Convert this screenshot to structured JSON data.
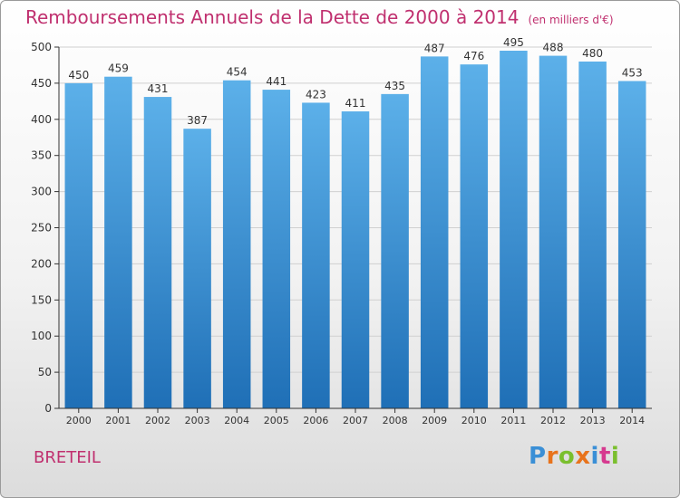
{
  "title": "Remboursements Annuels de la Dette de 2000 à 2014",
  "subtitle": "(en milliers d'€)",
  "location_label": "BRETEIL",
  "logo": {
    "text": "Proxiti",
    "letter_colors": [
      "#3a8fd6",
      "#e8731c",
      "#7abf2e",
      "#e8731c",
      "#3a8fd6",
      "#d63a8f",
      "#7abf2e"
    ]
  },
  "colors": {
    "bar_top": "#5cb0e9",
    "bar_bottom": "#1f6fb6",
    "title": "#c0306f",
    "grid": "#d0d0d0",
    "axis": "#333333"
  },
  "chart_data": {
    "type": "bar",
    "title": "Remboursements Annuels de la Dette de 2000 à 2014",
    "subtitle": "(en milliers d'€)",
    "xlabel": "",
    "ylabel": "",
    "categories": [
      "2000",
      "2001",
      "2002",
      "2003",
      "2004",
      "2005",
      "2006",
      "2007",
      "2008",
      "2009",
      "2010",
      "2011",
      "2012",
      "2013",
      "2014"
    ],
    "values": [
      450,
      459,
      431,
      387,
      454,
      441,
      423,
      411,
      435,
      487,
      476,
      495,
      488,
      480,
      453
    ],
    "ylim": [
      0,
      500
    ],
    "yticks": [
      0,
      50,
      100,
      150,
      200,
      250,
      300,
      350,
      400,
      450,
      500
    ],
    "grid": true,
    "data_labels": true,
    "legend": "none"
  }
}
